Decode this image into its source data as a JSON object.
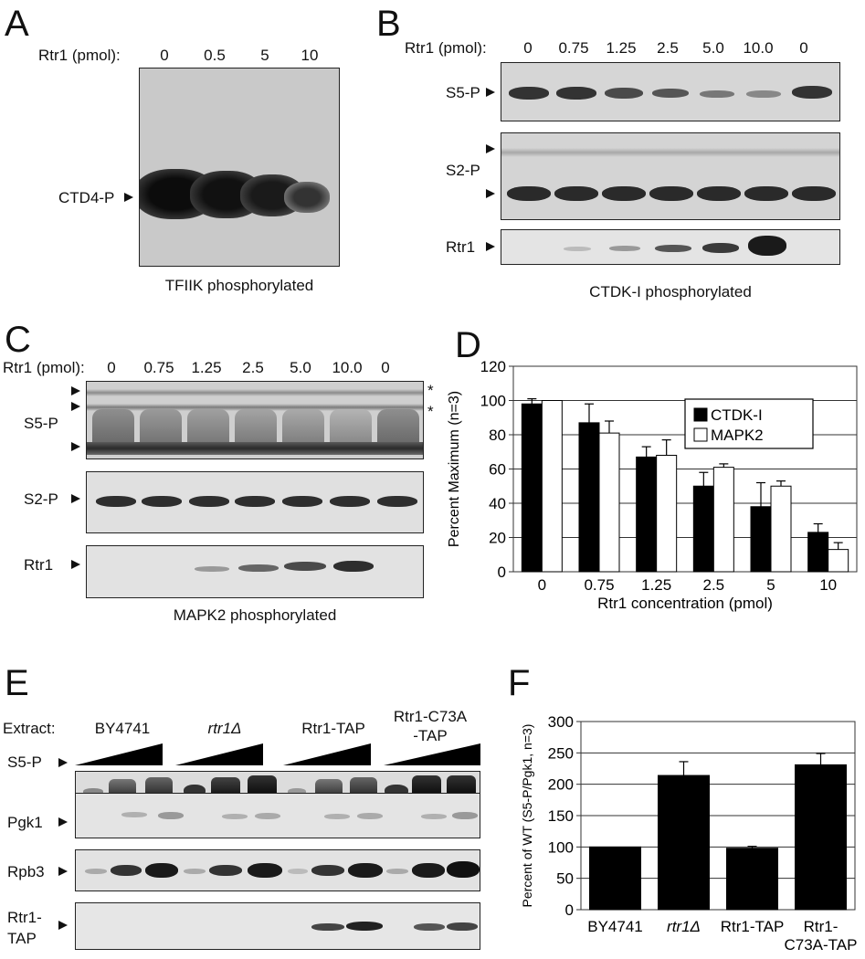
{
  "panelA": {
    "letter": "A",
    "axis_label": "Rtr1 (pmol):",
    "lanes": [
      "0",
      "0.5",
      "5",
      "10"
    ],
    "band_label": "CTD4-P",
    "caption": "TFIIK phosphorylated"
  },
  "panelB": {
    "letter": "B",
    "axis_label": "Rtr1 (pmol):",
    "lanes": [
      "0",
      "0.75",
      "1.25",
      "2.5",
      "5.0",
      "10.0",
      "0"
    ],
    "blots": [
      "S5-P",
      "S2-P",
      "Rtr1"
    ],
    "caption": "CTDK-I phosphorylated"
  },
  "panelC": {
    "letter": "C",
    "axis_label": "Rtr1 (pmol):",
    "lanes": [
      "0",
      "0.75",
      "1.25",
      "2.5",
      "5.0",
      "10.0",
      "0"
    ],
    "blots": [
      "S5-P",
      "S2-P",
      "Rtr1"
    ],
    "asterisk": "*",
    "caption": "MAPK2 phosphorylated"
  },
  "panelD": {
    "letter": "D"
  },
  "panelE": {
    "letter": "E",
    "extract_label": "Extract:",
    "strains": [
      "BY4741",
      "rtr1Δ",
      "Rtr1-TAP",
      "Rtr1-C73A",
      "-TAP"
    ],
    "blots": [
      "S5-P",
      "Pgk1",
      "Rpb3",
      "Rtr1-",
      "TAP"
    ]
  },
  "panelF": {
    "letter": "F"
  },
  "chart_data": [
    {
      "type": "bar",
      "ylabel": "Percent Maximum (n=3)",
      "xlabel": "Rtr1 concentration (pmol)",
      "categories": [
        "0",
        "0.75",
        "1.25",
        "2.5",
        "5",
        "10"
      ],
      "ylim": [
        0,
        120
      ],
      "yticks": [
        0,
        20,
        40,
        60,
        80,
        100,
        120
      ],
      "grid": true,
      "legend_position": "top-right",
      "series": [
        {
          "name": "CTDK-I",
          "color": "#000000",
          "values": [
            98,
            87,
            67,
            50,
            38,
            23
          ],
          "errors": [
            3,
            11,
            6,
            8,
            14,
            5
          ]
        },
        {
          "name": "MAPK2",
          "color": "#ffffff",
          "values": [
            100,
            81,
            68,
            61,
            50,
            13
          ],
          "errors": [
            0,
            7,
            9,
            2,
            3,
            4
          ]
        }
      ]
    },
    {
      "type": "bar",
      "ylabel": "Percent of WT (S5-P/Pgk1, n=3)",
      "xlabel": "",
      "categories": [
        "BY4741",
        "rtr1Δ",
        "Rtr1-TAP",
        "Rtr1-\nC73A-TAP"
      ],
      "ylim": [
        0,
        300
      ],
      "yticks": [
        0,
        50,
        100,
        150,
        200,
        250,
        300
      ],
      "grid": true,
      "series": [
        {
          "color": "#000000",
          "values": [
            100,
            214,
            98,
            231
          ],
          "errors": [
            0,
            22,
            3,
            18
          ]
        }
      ]
    }
  ]
}
